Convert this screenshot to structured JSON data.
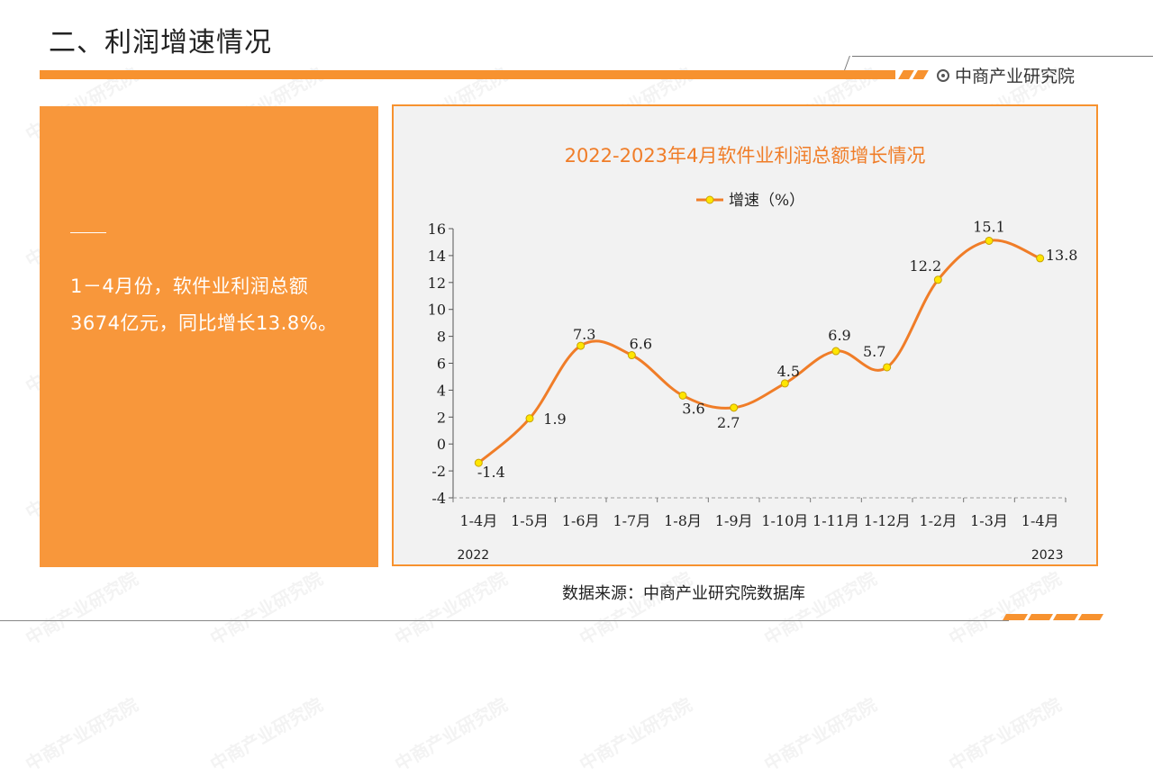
{
  "header": {
    "title": "二、利润增速情况",
    "brand": "中商产业研究院"
  },
  "summary": {
    "line1": "1－4月份，软件业利润总额",
    "line2": "3674亿元，同比增长13.8%。"
  },
  "source": "数据来源：中商产业研究院数据库",
  "colors": {
    "accent": "#f7922f",
    "panel": "#f8973b",
    "line": "#f07d28",
    "marker": "#ffe600"
  },
  "chart_data": {
    "type": "line",
    "title": "2022-2023年4月软件业利润总额增长情况",
    "categories": [
      "1-4月",
      "1-5月",
      "1-6月",
      "1-7月",
      "1-8月",
      "1-9月",
      "1-10月",
      "1-11月",
      "1-12月",
      "1-2月",
      "1-3月",
      "1-4月"
    ],
    "series": [
      {
        "name": "增速（%）",
        "values": [
          -1.4,
          1.9,
          7.3,
          6.6,
          3.6,
          2.7,
          4.5,
          6.9,
          5.7,
          12.2,
          15.1,
          13.8
        ]
      }
    ],
    "ylim": [
      -4,
      16
    ],
    "yticks": [
      -4,
      -2,
      0,
      2,
      4,
      6,
      8,
      10,
      12,
      14,
      16
    ],
    "year_labels": [
      "2022",
      "2023"
    ],
    "legend_position": "top-center",
    "grid": false
  }
}
